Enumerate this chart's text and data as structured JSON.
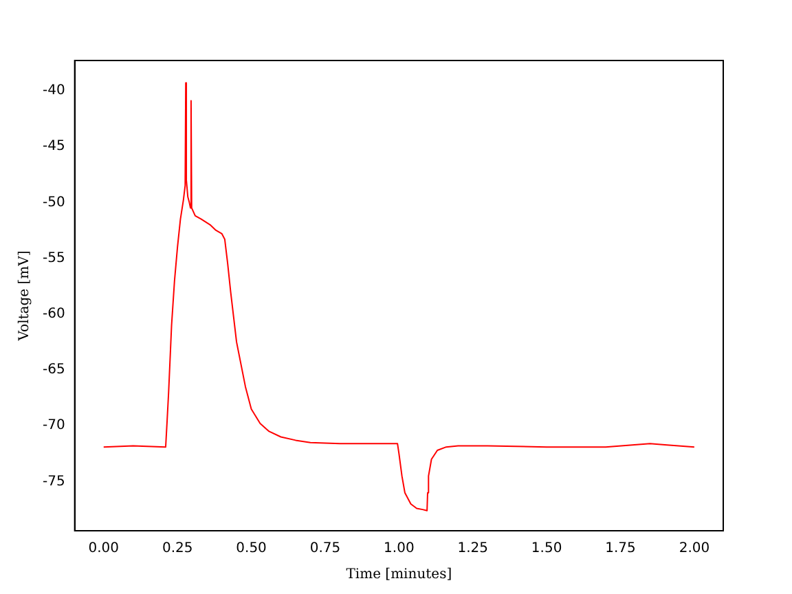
{
  "chart_data": {
    "type": "line",
    "xlabel": "Time [minutes]",
    "ylabel": "Voltage [mV]",
    "xlim": [
      -0.098,
      2.098
    ],
    "ylim": [
      -79.4,
      -37.3
    ],
    "xticks": [
      {
        "value": 0,
        "label": "0.00"
      },
      {
        "value": 0.25,
        "label": "0.25"
      },
      {
        "value": 0.5,
        "label": "0.50"
      },
      {
        "value": 0.75,
        "label": "0.75"
      },
      {
        "value": 1,
        "label": "1.00"
      },
      {
        "value": 1.25,
        "label": "1.25"
      },
      {
        "value": 1.5,
        "label": "1.50"
      },
      {
        "value": 1.75,
        "label": "1.75"
      },
      {
        "value": 2,
        "label": "2.00"
      }
    ],
    "yticks": [
      -75,
      -70,
      -65,
      -60,
      -55,
      -50,
      -45,
      -40
    ],
    "grid": false,
    "legend": false,
    "marker": "none",
    "line_style": "solid",
    "series": [
      {
        "color": "#ff0000",
        "x": [
          0,
          0.1,
          0.21,
          0.215,
          0.22,
          0.23,
          0.24,
          0.25,
          0.26,
          0.27,
          0.276,
          0.278,
          0.28,
          0.285,
          0.29,
          0.294,
          0.296,
          0.298,
          0.31,
          0.33,
          0.36,
          0.38,
          0.4,
          0.41,
          0.42,
          0.43,
          0.45,
          0.48,
          0.5,
          0.53,
          0.56,
          0.6,
          0.65,
          0.7,
          0.8,
          0.9,
          0.995,
          1.0,
          1.01,
          1.02,
          1.04,
          1.06,
          1.08,
          1.095,
          1.097,
          1.1,
          1.11,
          1.13,
          1.16,
          1.2,
          1.3,
          1.5,
          1.7,
          1.85,
          1.9,
          2.0
        ],
        "values": [
          -71.9,
          -71.8,
          -71.9,
          -69.5,
          -67,
          -61,
          -57,
          -54,
          -51.5,
          -49.8,
          -48.5,
          -39.3,
          -48,
          -49.5,
          -50,
          -50.5,
          -40.9,
          -50.5,
          -51.2,
          -51.5,
          -52,
          -52.5,
          -52.8,
          -53.3,
          -55.5,
          -58,
          -62.5,
          -66.5,
          -68.5,
          -69.8,
          -70.5,
          -71,
          -71.3,
          -71.5,
          -71.6,
          -71.6,
          -71.6,
          -72.5,
          -74.5,
          -76,
          -77,
          -77.4,
          -77.5,
          -77.6,
          -76,
          -74.5,
          -73,
          -72.2,
          -71.9,
          -71.8,
          -71.8,
          -71.9,
          -71.9,
          -71.6,
          -71.7,
          -71.9
        ]
      }
    ]
  }
}
